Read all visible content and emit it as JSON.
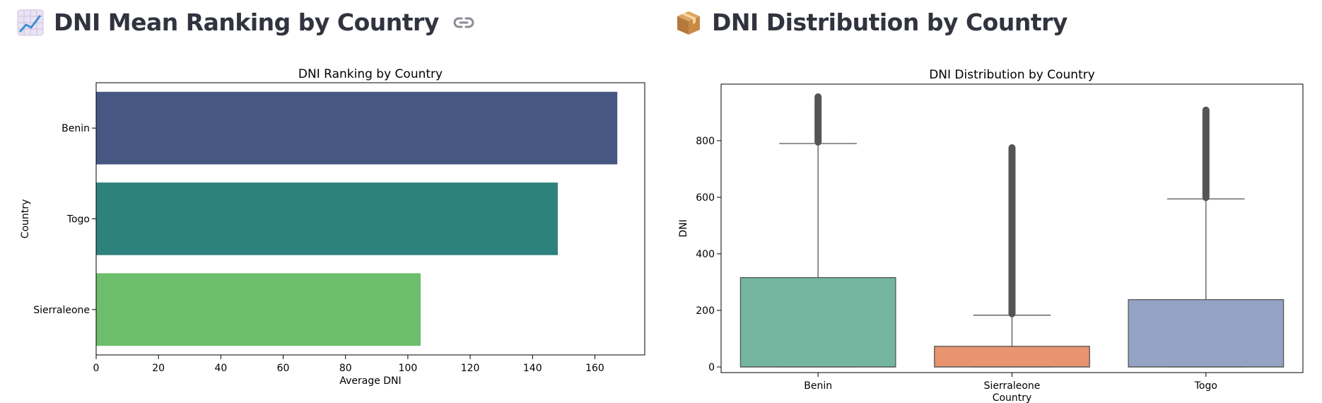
{
  "left": {
    "heading": "DNI Mean Ranking by Country",
    "icon": "chart-increasing-emoji-icon"
  },
  "right": {
    "heading": "DNI Distribution by Country",
    "icon": "package-emoji-icon"
  },
  "chart_data": [
    {
      "type": "bar",
      "orientation": "horizontal",
      "title": "DNI Ranking by Country",
      "xlabel": "Average DNI",
      "ylabel": "Country",
      "categories": [
        "Benin",
        "Togo",
        "Sierraleone"
      ],
      "values": [
        167.2,
        148.1,
        104.1
      ],
      "colors": [
        "#455782",
        "#2e827d",
        "#6cbe6c"
      ],
      "xlim": [
        0,
        176
      ],
      "xticks": [
        0,
        20,
        40,
        60,
        80,
        100,
        120,
        140,
        160
      ],
      "grid": false
    },
    {
      "type": "box",
      "title": "DNI Distribution by Country",
      "xlabel": "Country",
      "ylabel": "DNI",
      "categories": [
        "Benin",
        "Sierraleone",
        "Togo"
      ],
      "colors": [
        "#74b6a0",
        "#e8946f",
        "#94a3c4"
      ],
      "ylim": [
        -20,
        1000
      ],
      "yticks": [
        0,
        200,
        400,
        600,
        800
      ],
      "boxes": [
        {
          "name": "Benin",
          "min": 0,
          "q1": 0,
          "median": 0,
          "q3": 316,
          "whisker_high": 790,
          "outlier_max": 955
        },
        {
          "name": "Sierraleone",
          "min": 0,
          "q1": 0,
          "median": 0,
          "q3": 73,
          "whisker_high": 183,
          "outlier_max": 775
        },
        {
          "name": "Togo",
          "min": 0,
          "q1": 0,
          "median": 0,
          "q3": 238,
          "whisker_high": 594,
          "outlier_max": 908
        }
      ],
      "grid": false
    }
  ]
}
